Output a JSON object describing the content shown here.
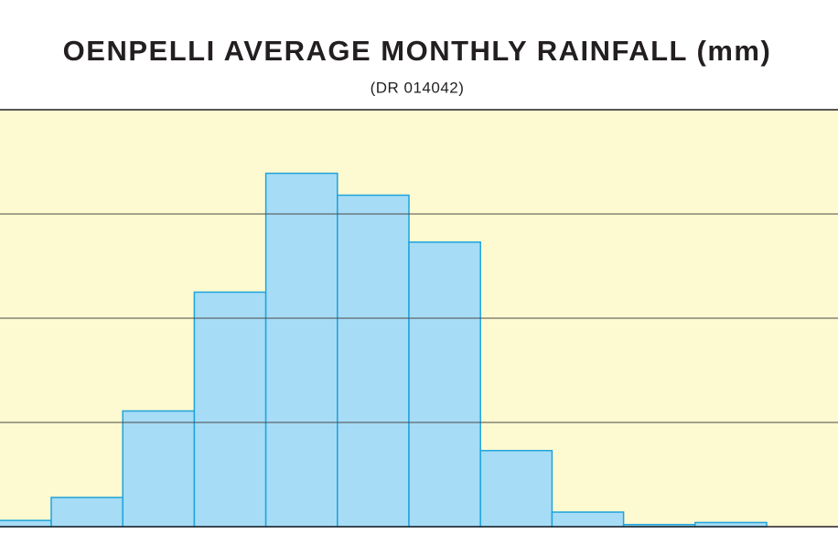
{
  "chart_data": {
    "type": "bar",
    "title": "OENPELLI AVERAGE MONTHLY RAINFALL (mm)",
    "subtitle": "(DR 014042)",
    "values": [
      6,
      28,
      111,
      225,
      339,
      318,
      273,
      73,
      14,
      2,
      4
    ],
    "color": "#a6dcf6",
    "edge_color": "#1fa3dc",
    "background": "#fdf9d0",
    "ylim": [
      0,
      400
    ],
    "yticks": [
      0,
      100,
      200,
      300,
      400
    ],
    "grid": true
  }
}
